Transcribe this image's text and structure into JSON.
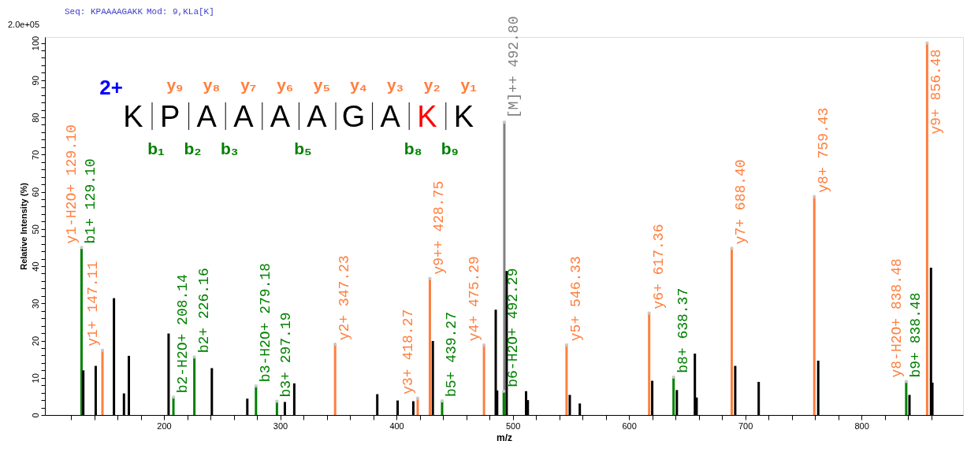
{
  "chart_data": {
    "type": "bar",
    "xlabel": "m/z",
    "ylabel": "Relative  Intensity (%)",
    "xlim": [
      101,
      884
    ],
    "ylim": [
      0,
      101.6
    ],
    "xticks": [
      {
        "value": 120,
        "label": null
      },
      {
        "value": 140,
        "label": null
      },
      {
        "value": 160,
        "label": null
      },
      {
        "value": 180,
        "label": null
      },
      200,
      {
        "value": 220,
        "label": null
      },
      {
        "value": 240,
        "label": null
      },
      {
        "value": 260,
        "label": null
      },
      {
        "value": 280,
        "label": null
      },
      300,
      {
        "value": 320,
        "label": null
      },
      {
        "value": 340,
        "label": null
      },
      {
        "value": 360,
        "label": null
      },
      {
        "value": 380,
        "label": null
      },
      400,
      {
        "value": 420,
        "label": null
      },
      {
        "value": 440,
        "label": null
      },
      {
        "value": 460,
        "label": null
      },
      {
        "value": 480,
        "label": null
      },
      500,
      {
        "value": 520,
        "label": null
      },
      {
        "value": 540,
        "label": null
      },
      {
        "value": 560,
        "label": null
      },
      {
        "value": 580,
        "label": null
      },
      600,
      {
        "value": 620,
        "label": null
      },
      {
        "value": 640,
        "label": null
      },
      {
        "value": 660,
        "label": null
      },
      {
        "value": 680,
        "label": null
      },
      700,
      {
        "value": 720,
        "label": null
      },
      {
        "value": 740,
        "label": null
      },
      {
        "value": 760,
        "label": null
      },
      {
        "value": 780,
        "label": null
      },
      800,
      {
        "value": 820,
        "label": null
      },
      {
        "value": 840,
        "label": null
      },
      {
        "value": 860,
        "label": null
      }
    ],
    "yticks": [
      0,
      {
        "value": 2,
        "label": null
      },
      {
        "value": 4,
        "label": null
      },
      {
        "value": 6,
        "label": null
      },
      {
        "value": 8,
        "label": null
      },
      10,
      {
        "value": 12,
        "label": null
      },
      {
        "value": 14,
        "label": null
      },
      {
        "value": 16,
        "label": null
      },
      {
        "value": 18,
        "label": null
      },
      20,
      {
        "value": 22,
        "label": null
      },
      {
        "value": 24,
        "label": null
      },
      {
        "value": 26,
        "label": null
      },
      {
        "value": 28,
        "label": null
      },
      30,
      {
        "value": 32,
        "label": null
      },
      {
        "value": 34,
        "label": null
      },
      {
        "value": 36,
        "label": null
      },
      {
        "value": 38,
        "label": null
      },
      40,
      {
        "value": 42,
        "label": null
      },
      {
        "value": 44,
        "label": null
      },
      {
        "value": 46,
        "label": null
      },
      {
        "value": 48,
        "label": null
      },
      50,
      {
        "value": 52,
        "label": null
      },
      {
        "value": 54,
        "label": null
      },
      {
        "value": 56,
        "label": null
      },
      {
        "value": 58,
        "label": null
      },
      60,
      {
        "value": 62,
        "label": null
      },
      {
        "value": 64,
        "label": null
      },
      {
        "value": 66,
        "label": null
      },
      {
        "value": 68,
        "label": null
      },
      70,
      {
        "value": 72,
        "label": null
      },
      {
        "value": 74,
        "label": null
      },
      {
        "value": 76,
        "label": null
      },
      {
        "value": 78,
        "label": null
      },
      80,
      {
        "value": 82,
        "label": null
      },
      {
        "value": 84,
        "label": null
      },
      {
        "value": 86,
        "label": null
      },
      {
        "value": 88,
        "label": null
      },
      90,
      {
        "value": 92,
        "label": null
      },
      {
        "value": 94,
        "label": null
      },
      {
        "value": 96,
        "label": null
      },
      {
        "value": 98,
        "label": null
      },
      100
    ],
    "marker": "circle",
    "series": [
      {
        "color": "#808080",
        "x": [
          492.8
        ],
        "values": [
          78.7
        ]
      },
      {
        "color": "#ff7f3f",
        "x": [
          147.11,
          347.23,
          418.27,
          428.75,
          475.29,
          546.33,
          617.36,
          688.4,
          759.43,
          856.48
        ],
        "values": [
          17.4,
          19.0,
          4.5,
          36.7,
          18.8,
          18.8,
          27.4,
          44.8,
          58.7,
          100
        ]
      },
      {
        "color": "#008000",
        "x": [
          129.1,
          208.14,
          226.16,
          279.18,
          297.19,
          439.27,
          492.29,
          638.37,
          838.48
        ],
        "values": [
          45,
          4.8,
          15.6,
          7.8,
          3.7,
          3.8,
          6.4,
          10.2,
          9.0
        ]
      },
      {
        "color": "#000000",
        "x": [
          130.6,
          141.3,
          157.0,
          165.6,
          169.8,
          204.0,
          241.2,
          271.7,
          304.0,
          312.1,
          383.5,
          401.0,
          414.5,
          431.3,
          485.4,
          486.6,
          494.8,
          511.5,
          513.0,
          549.1,
          557.7,
          620.0,
          641.2,
          656.7,
          658.2,
          691.4,
          711.6,
          762.8,
          841.3,
          859.8,
          861.0
        ],
        "values": [
          12.0,
          13.2,
          31.4,
          5.8,
          15.9,
          21.9,
          12.6,
          4.4,
          3.5,
          8.5,
          5.6,
          3.9,
          3.7,
          19.9,
          28.3,
          6.6,
          38.7,
          6.4,
          4.0,
          5.4,
          3.1,
          9.2,
          6.7,
          16.5,
          4.7,
          13.2,
          8.9,
          14.6,
          5.4,
          39.6,
          8.7
        ]
      }
    ],
    "annotations": [
      "Seq: KPAAAAGAKK",
      "Mod: 9,KLa[K]",
      "2.0e+05",
      "2+",
      "K",
      "P",
      "A",
      "A",
      "A",
      "A",
      "G",
      "A",
      "K",
      "K",
      "y₉",
      "y₈",
      "y₇",
      "y₆",
      "y₅",
      "y₄",
      "y₃",
      "y₂",
      "y₁",
      "b₁",
      "b₂",
      "b₃",
      "b₅",
      "b₈",
      "b₉",
      {
        "text": "[M]++ 492.80",
        "x": 492.8,
        "y": 78.7
      },
      {
        "text": "y1+ 147.11",
        "x": 147.11,
        "y": 17.4
      },
      {
        "text": "y2+ 347.23",
        "x": 347.23,
        "y": 19.0
      },
      {
        "text": "y3+ 418.27",
        "x": 418.27,
        "y": 4.5
      },
      {
        "text": "y9++ 428.75",
        "x": 428.75,
        "y": 36.7
      },
      {
        "text": "y4+ 475.29",
        "x": 475.29,
        "y": 18.8
      },
      {
        "text": "y5+ 546.33",
        "x": 546.33,
        "y": 18.8
      },
      {
        "text": "y6+ 617.36",
        "x": 617.36,
        "y": 27.4
      },
      {
        "text": "y7+ 688.40",
        "x": 688.4,
        "y": 44.8
      },
      {
        "text": "y8+ 759.43",
        "x": 759.43,
        "y": 58.7
      },
      {
        "text": "y9+ 856.48",
        "x": 856.48,
        "y": 100
      },
      {
        "text": "b1+ 129.10",
        "x": 129.1,
        "y": 45
      },
      {
        "text": "b2-H2O+ 208.14",
        "x": 208.14,
        "y": 4.8
      },
      {
        "text": "b2+ 226.16",
        "x": 226.16,
        "y": 15.6
      },
      {
        "text": "b3-H2O+ 279.18",
        "x": 279.18,
        "y": 7.8
      },
      {
        "text": "b3+ 297.19",
        "x": 297.19,
        "y": 3.7
      },
      {
        "text": "b5+ 439.27",
        "x": 439.27,
        "y": 3.8
      },
      {
        "text": "b6-H2O+ 492.29",
        "x": 492.29,
        "y": 6.4
      },
      {
        "text": "b8+ 638.37",
        "x": 638.37,
        "y": 10.2
      },
      {
        "text": "b9+ 838.48",
        "x": 838.48,
        "y": 9.0
      },
      {
        "text": "y1-H2O+ 129.10",
        "x": 129.1,
        "y": 45
      },
      {
        "text": "y8-H2O+ 838.48",
        "x": 838.48,
        "y": 9.0
      }
    ]
  }
}
